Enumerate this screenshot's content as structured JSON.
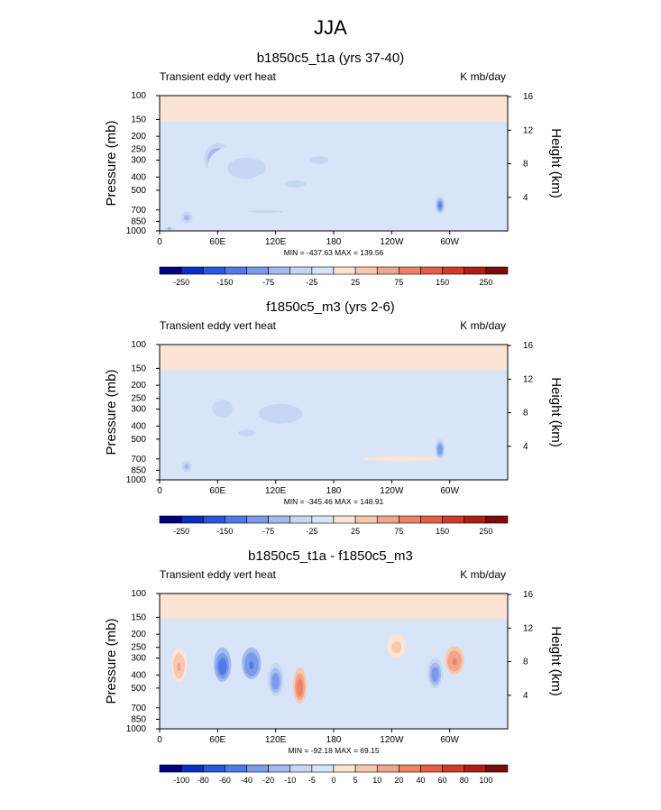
{
  "figure": {
    "title": "JJA"
  },
  "chart_data": [
    {
      "type": "heatmap",
      "title": "b1850c5_t1a (yrs 37-40)",
      "variable": "Transient eddy vert heat",
      "units": "K mb/day",
      "xlabel": "",
      "ylabel": "Pressure (mb)",
      "y2label": "Height (km)",
      "x_range": [
        0,
        360
      ],
      "xticks": [
        "0",
        "60E",
        "120E",
        "180",
        "120W",
        "60W"
      ],
      "yticks": [
        "100",
        "150",
        "200",
        "250",
        "300",
        "400",
        "500",
        "700",
        "850",
        "1000"
      ],
      "y_range_mb": [
        100,
        1000
      ],
      "y2ticks": [
        "4",
        "8",
        "12",
        "16"
      ],
      "stats": "MIN = -437.63  MAX = 139.56",
      "colorbar": {
        "levels": [
          "-250",
          "-150",
          "-75",
          "-25",
          "25",
          "75",
          "150",
          "250"
        ],
        "colors": [
          "#000080",
          "#0a2ec0",
          "#2a56e0",
          "#4f7be8",
          "#7a9aea",
          "#a3b9ef",
          "#c6d6f3",
          "#d8e4f8",
          "#fbe4d4",
          "#f6c9ae",
          "#f1a58a",
          "#ec8266",
          "#e45e45",
          "#d23b2c",
          "#b01d15",
          "#7e0a0a"
        ]
      },
      "features": [
        {
          "lon": 60,
          "p": 300,
          "lonw": 14,
          "pw": 150,
          "v": -170
        },
        {
          "lon": 90,
          "p": 350,
          "lonw": 40,
          "pw": 250,
          "v": -35
        },
        {
          "lon": 140,
          "p": 450,
          "lonw": 45,
          "pw": 200,
          "v": -30
        },
        {
          "lon": 165,
          "p": 300,
          "lonw": 20,
          "pw": 80,
          "v": -35
        },
        {
          "lon": 110,
          "p": 720,
          "lonw": 70,
          "pw": 100,
          "v": -30
        },
        {
          "lon": 290,
          "p": 650,
          "lonw": 5,
          "pw": 200,
          "v": -260
        },
        {
          "lon": 28,
          "p": 800,
          "lonw": 6,
          "pw": 150,
          "v": -120
        },
        {
          "lon": 10,
          "p": 960,
          "lonw": 8,
          "pw": 40,
          "v": -90
        }
      ]
    },
    {
      "type": "heatmap",
      "title": "f1850c5_m3 (yrs 2-6)",
      "variable": "Transient eddy vert heat",
      "units": "K mb/day",
      "xlabel": "",
      "ylabel": "Pressure (mb)",
      "y2label": "Height (km)",
      "x_range": [
        0,
        360
      ],
      "xticks": [
        "0",
        "60E",
        "120E",
        "180",
        "120W",
        "60W"
      ],
      "yticks": [
        "100",
        "150",
        "200",
        "250",
        "300",
        "400",
        "500",
        "700",
        "850",
        "1000"
      ],
      "y_range_mb": [
        100,
        1000
      ],
      "y2ticks": [
        "4",
        "8",
        "12",
        "16"
      ],
      "stats": "MIN = -345.46  MAX = 148.91",
      "colorbar": {
        "levels": [
          "-250",
          "-150",
          "-75",
          "-25",
          "25",
          "75",
          "150",
          "250"
        ],
        "colors": [
          "#000080",
          "#0a2ec0",
          "#2a56e0",
          "#4f7be8",
          "#7a9aea",
          "#a3b9ef",
          "#c6d6f3",
          "#d8e4f8",
          "#fbe4d4",
          "#f6c9ae",
          "#f1a58a",
          "#ec8266",
          "#e45e45",
          "#d23b2c",
          "#b01d15",
          "#7e0a0a"
        ]
      },
      "features": [
        {
          "lon": 65,
          "p": 300,
          "lonw": 14,
          "pw": 120,
          "v": -60
        },
        {
          "lon": 125,
          "p": 330,
          "lonw": 45,
          "pw": 220,
          "v": -40
        },
        {
          "lon": 90,
          "p": 450,
          "lonw": 35,
          "pw": 200,
          "v": -28
        },
        {
          "lon": 290,
          "p": 600,
          "lonw": 5,
          "pw": 200,
          "v": -200
        },
        {
          "lon": 28,
          "p": 800,
          "lonw": 5,
          "pw": 150,
          "v": -110
        },
        {
          "lon": 250,
          "p": 700,
          "lonw": 40,
          "pw": 60,
          "v": 15
        }
      ]
    },
    {
      "type": "heatmap",
      "title": "b1850c5_t1a - f1850c5_m3",
      "variable": "Transient eddy vert heat",
      "units": "K mb/day",
      "xlabel": "",
      "ylabel": "Pressure (mb)",
      "y2label": "Height (km)",
      "x_range": [
        0,
        360
      ],
      "xticks": [
        "0",
        "60E",
        "120E",
        "180",
        "120W",
        "60W"
      ],
      "yticks": [
        "100",
        "150",
        "200",
        "250",
        "300",
        "400",
        "500",
        "700",
        "850",
        "1000"
      ],
      "y_range_mb": [
        100,
        1000
      ],
      "y2ticks": [
        "4",
        "8",
        "12",
        "16"
      ],
      "stats": "MIN = -92.18  MAX = 69.15",
      "colorbar": {
        "levels": [
          "-100",
          "-80",
          "-60",
          "-40",
          "-20",
          "-10",
          "-5",
          "0",
          "5",
          "10",
          "20",
          "40",
          "60",
          "80",
          "100"
        ],
        "colors": [
          "#000080",
          "#0a2ec0",
          "#2a56e0",
          "#4f7be8",
          "#7a9aea",
          "#a3b9ef",
          "#c6d6f3",
          "#d8e4f8",
          "#fbe4d4",
          "#f6c9ae",
          "#f1a58a",
          "#ec8266",
          "#e45e45",
          "#d23b2c",
          "#b01d15",
          "#7e0a0a"
        ]
      },
      "features": [
        {
          "lon": 65,
          "p": 350,
          "lonw": 9,
          "pw": 200,
          "v": -55
        },
        {
          "lon": 95,
          "p": 340,
          "lonw": 10,
          "pw": 180,
          "v": -40
        },
        {
          "lon": 120,
          "p": 450,
          "lonw": 8,
          "pw": 250,
          "v": -35
        },
        {
          "lon": 145,
          "p": 500,
          "lonw": 7,
          "pw": 300,
          "v": 30
        },
        {
          "lon": 20,
          "p": 350,
          "lonw": 8,
          "pw": 200,
          "v": 12
        },
        {
          "lon": 285,
          "p": 400,
          "lonw": 8,
          "pw": 200,
          "v": -35
        },
        {
          "lon": 305,
          "p": 320,
          "lonw": 10,
          "pw": 150,
          "v": 25
        },
        {
          "lon": 245,
          "p": 250,
          "lonw": 10,
          "pw": 100,
          "v": 8
        }
      ]
    }
  ]
}
